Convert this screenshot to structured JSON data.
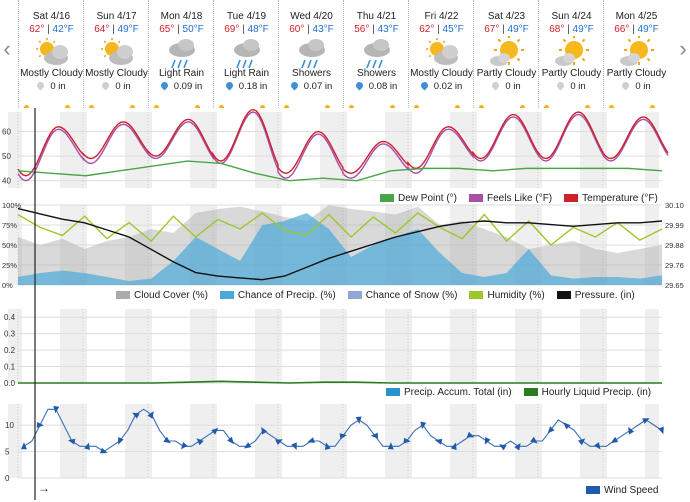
{
  "days": [
    {
      "day": "Sat 4/16",
      "hi": "62°",
      "lo": "42°F",
      "cond": "Mostly Cloudy",
      "icon": "mostly-cloudy-icon",
      "precip": "0 in",
      "precip_icon": "gray"
    },
    {
      "day": "Sun 4/17",
      "hi": "64°",
      "lo": "49°F",
      "cond": "Mostly Cloudy",
      "icon": "mostly-cloudy-icon",
      "precip": "0 in",
      "precip_icon": "gray"
    },
    {
      "day": "Mon 4/18",
      "hi": "65°",
      "lo": "50°F",
      "cond": "Light Rain",
      "icon": "rain-icon",
      "precip": "0.09 in",
      "precip_icon": "blue"
    },
    {
      "day": "Tue 4/19",
      "hi": "69°",
      "lo": "48°F",
      "cond": "Light Rain",
      "icon": "rain-icon",
      "precip": "0.18 in",
      "precip_icon": "blue"
    },
    {
      "day": "Wed 4/20",
      "hi": "60°",
      "lo": "43°F",
      "cond": "Showers",
      "icon": "rain-icon",
      "precip": "0.07 in",
      "precip_icon": "blue"
    },
    {
      "day": "Thu 4/21",
      "hi": "56°",
      "lo": "43°F",
      "cond": "Showers",
      "icon": "rain-icon",
      "precip": "0.08 in",
      "precip_icon": "blue"
    },
    {
      "day": "Fri 4/22",
      "hi": "62°",
      "lo": "45°F",
      "cond": "Mostly Cloudy",
      "icon": "mostly-cloudy-icon",
      "precip": "0.02 in",
      "precip_icon": "blue"
    },
    {
      "day": "Sat 4/23",
      "hi": "67°",
      "lo": "49°F",
      "cond": "Partly Cloudy",
      "icon": "partly-cloudy-icon",
      "precip": "0 in",
      "precip_icon": "gray"
    },
    {
      "day": "Sun 4/24",
      "hi": "68°",
      "lo": "49°F",
      "cond": "Partly Cloudy",
      "icon": "partly-cloudy-icon",
      "precip": "0 in",
      "precip_icon": "gray"
    },
    {
      "day": "Mon 4/25",
      "hi": "66°",
      "lo": "49°F",
      "cond": "Partly Cloudy",
      "icon": "partly-cloudy-icon",
      "precip": "0 in",
      "precip_icon": "gray"
    }
  ],
  "nav": {
    "prev": "‹",
    "next": "›",
    "scroll": "→"
  },
  "colors": {
    "temperature": "#d0202a",
    "feels_like": "#a650a8",
    "dew_point": "#4aa548",
    "cloud_cover": "#aaaaaa",
    "chance_precip": "#4aa9d8",
    "chance_snow": "#8fa8d8",
    "humidity": "#9cc829",
    "pressure": "#111111",
    "precip_total": "#2b92c8",
    "hourly_precip": "#2a7a20",
    "wind_speed": "#1f5ba8"
  },
  "chart_data": [
    {
      "type": "line",
      "panel": "temperature",
      "ytick_labels": [
        "60",
        "50",
        "40"
      ],
      "ylim": [
        37,
        68
      ],
      "x_days": 10,
      "series": [
        {
          "name": "Temperature (°F)",
          "highs": [
            62,
            64,
            65,
            69,
            60,
            56,
            62,
            67,
            68,
            66
          ],
          "lows": [
            42,
            49,
            50,
            48,
            43,
            43,
            45,
            49,
            49,
            49
          ]
        },
        {
          "name": "Feels Like (°F)",
          "highs": [
            61,
            63,
            64,
            68,
            59,
            55,
            61,
            66,
            67,
            65
          ],
          "lows": [
            40,
            47,
            49,
            47,
            41,
            41,
            43,
            48,
            48,
            48
          ]
        },
        {
          "name": "Dew Point (°)",
          "values": [
            44,
            43,
            42,
            44,
            46,
            48,
            47,
            43,
            40,
            41,
            40,
            44,
            45,
            45,
            44,
            45,
            45,
            45,
            45,
            44
          ]
        }
      ]
    },
    {
      "type": "area",
      "panel": "atmosphere",
      "ytick_labels": [
        "100%",
        "75%",
        "50%",
        "25%",
        "0%"
      ],
      "y2tick_labels": [
        "30.10",
        "29.99",
        "29.88",
        "29.76",
        "29.65"
      ],
      "ylim": [
        0,
        100
      ],
      "y2lim": [
        29.65,
        30.1
      ],
      "series": [
        {
          "name": "Cloud Cover (%)",
          "values": [
            60,
            50,
            58,
            45,
            55,
            60,
            70,
            65,
            90,
            95,
            98,
            92,
            85,
            80,
            100,
            95,
            92,
            88,
            98,
            75,
            80,
            70,
            60,
            45,
            50,
            55,
            45,
            40,
            45,
            50
          ]
        },
        {
          "name": "Chance of Precip. (%)",
          "values": [
            10,
            15,
            18,
            15,
            10,
            5,
            8,
            30,
            60,
            45,
            30,
            75,
            80,
            90,
            70,
            35,
            50,
            60,
            70,
            40,
            15,
            10,
            15,
            45,
            12,
            8,
            10,
            10,
            8,
            12
          ]
        },
        {
          "name": "Chance of Snow (%)",
          "values": [
            0,
            0,
            0,
            0,
            0,
            0,
            0,
            0,
            0,
            0,
            0,
            0,
            0,
            0,
            0,
            0,
            0,
            0,
            0,
            0,
            0,
            0,
            0,
            0,
            0,
            0,
            0,
            0,
            0,
            0
          ]
        },
        {
          "name": "Humidity (%)",
          "values": [
            88,
            72,
            62,
            86,
            58,
            78,
            55,
            86,
            60,
            82,
            70,
            90,
            68,
            62,
            88,
            60,
            85,
            65,
            90,
            72,
            58,
            88,
            55,
            80,
            50,
            72,
            60,
            78,
            56,
            70
          ]
        },
        {
          "name": "Pressure. (in)",
          "values": [
            30.08,
            30.05,
            30.02,
            30.0,
            29.96,
            29.92,
            29.85,
            29.78,
            29.72,
            29.7,
            29.69,
            29.68,
            29.7,
            29.75,
            29.8,
            29.84,
            29.88,
            29.92,
            29.95,
            29.98,
            30.0,
            30.01,
            30.0,
            30.0,
            29.99,
            29.98,
            29.99,
            30.0,
            30.0,
            30.01
          ]
        }
      ]
    },
    {
      "type": "line",
      "panel": "precipitation",
      "ytick_labels": [
        "0.4",
        "0.3",
        "0.2",
        "0.1",
        "0.0"
      ],
      "ylim": [
        0,
        0.45
      ],
      "series": [
        {
          "name": "Precip. Accum. Total (in)",
          "values": [
            0,
            0,
            0,
            0,
            0,
            0,
            0,
            0,
            0,
            0
          ]
        },
        {
          "name": "Hourly Liquid Precip. (in)",
          "values": [
            0,
            0,
            0,
            0,
            0,
            0.005,
            0.01,
            0.005,
            0,
            0.005,
            0.005,
            0,
            0,
            0,
            0,
            0,
            0,
            0,
            0,
            0
          ]
        }
      ]
    },
    {
      "type": "line",
      "panel": "wind",
      "ytick_labels": [
        "10",
        "5",
        "0"
      ],
      "ylim": [
        0,
        14
      ],
      "series": [
        {
          "name": "Wind Speed",
          "values": [
            6,
            7,
            10,
            13,
            13,
            10,
            7,
            6,
            6,
            6,
            5,
            6,
            7,
            9,
            12,
            13,
            12,
            9,
            7,
            7,
            6,
            6,
            7,
            8,
            9,
            9,
            7,
            6,
            6,
            7,
            9,
            8,
            7,
            6,
            6,
            6,
            7,
            7,
            6,
            6,
            8,
            10,
            11,
            10,
            8,
            6,
            6,
            6,
            7,
            9,
            10,
            8,
            7,
            6,
            6,
            7,
            8,
            8,
            7,
            6,
            6,
            7,
            6,
            6,
            7,
            7,
            9,
            11,
            10,
            9,
            7,
            6,
            6,
            6,
            7,
            8,
            9,
            10,
            11,
            10,
            9
          ]
        }
      ]
    }
  ],
  "legends": {
    "temperature": [
      "Dew Point (°)",
      "Feels Like (°F)",
      "Temperature (°F)"
    ],
    "atmosphere": [
      "Cloud Cover (%)",
      "Chance of Precip. (%)",
      "Chance of Snow (%)",
      "Humidity (%)",
      "Pressure. (in)"
    ],
    "precipitation": [
      "Precip. Accum. Total (in)",
      "Hourly Liquid Precip. (in)"
    ],
    "wind": [
      "Wind Speed"
    ]
  }
}
